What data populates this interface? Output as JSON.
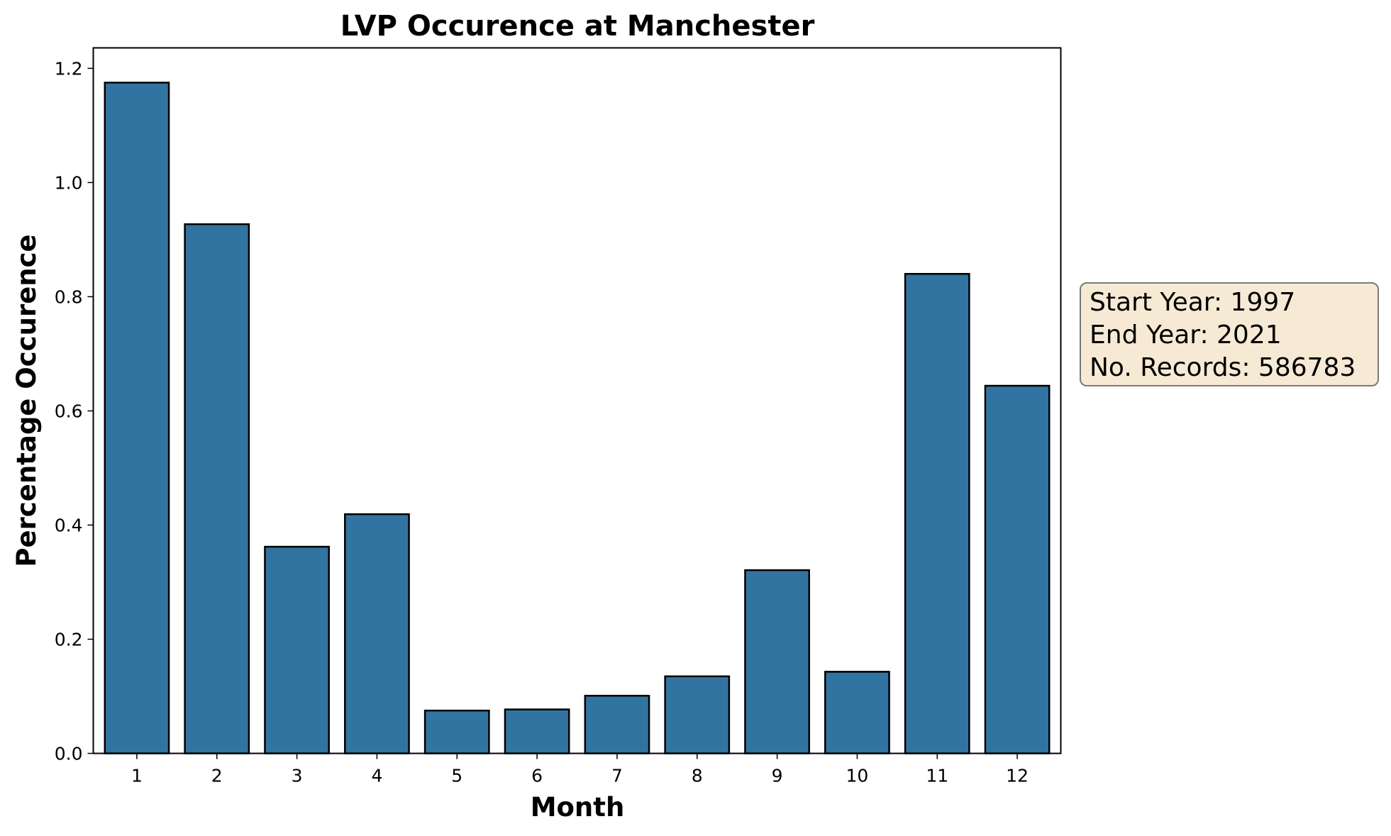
{
  "chart_data": {
    "type": "bar",
    "title": "LVP Occurence at Manchester",
    "xlabel": "Month",
    "ylabel": "Percentage Occurence",
    "categories": [
      "1",
      "2",
      "3",
      "4",
      "5",
      "6",
      "7",
      "8",
      "9",
      "10",
      "11",
      "12"
    ],
    "values": [
      1.175,
      0.927,
      0.362,
      0.419,
      0.075,
      0.077,
      0.101,
      0.135,
      0.321,
      0.143,
      0.84,
      0.644
    ],
    "ylim": [
      0,
      1.2359
    ],
    "yticks": [
      "0.0",
      "0.2",
      "0.4",
      "0.6",
      "0.8",
      "1.0",
      "1.2"
    ],
    "grid": false,
    "bar_color": "#3274a1",
    "edge_color": "#000000",
    "annotation": {
      "start_year": "Start Year: 1997",
      "end_year": "End Year: 2021",
      "records": "No. Records: 586783"
    }
  }
}
